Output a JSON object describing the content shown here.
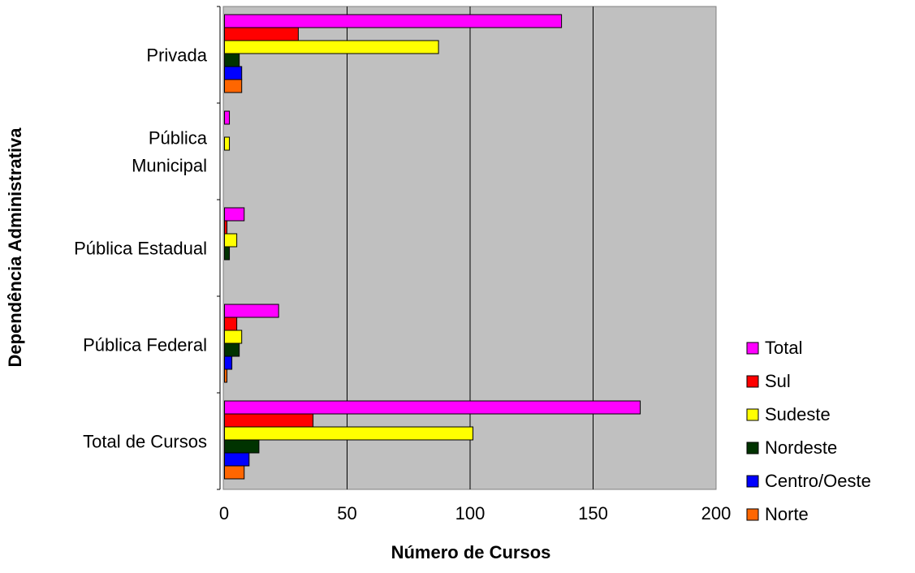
{
  "chart_data": {
    "type": "bar",
    "orientation": "horizontal",
    "categories": [
      "Privada",
      "Pública Municipal",
      "Pública Estadual",
      "Pública Federal",
      "Total de Cursos"
    ],
    "category_lines": [
      [
        "Privada"
      ],
      [
        "Pública",
        "Municipal"
      ],
      [
        "Pública Estadual"
      ],
      [
        "Pública Federal"
      ],
      [
        "Total de Cursos"
      ]
    ],
    "series": [
      {
        "name": "Total",
        "color": "#ff00ff",
        "values": [
          137,
          2,
          8,
          22,
          169
        ]
      },
      {
        "name": "Sul",
        "color": "#ff0000",
        "values": [
          30,
          0,
          1,
          5,
          36
        ]
      },
      {
        "name": "Sudeste",
        "color": "#ffff00",
        "values": [
          87,
          2,
          5,
          7,
          101
        ]
      },
      {
        "name": "Nordeste",
        "color": "#003300",
        "values": [
          6,
          0,
          2,
          6,
          14
        ]
      },
      {
        "name": "Centro/Oeste",
        "color": "#0000ff",
        "values": [
          7,
          0,
          0,
          3,
          10
        ]
      },
      {
        "name": "Norte",
        "color": "#ff6600",
        "values": [
          7,
          0,
          0,
          1,
          8
        ]
      }
    ],
    "xlabel": "Número de Cursos",
    "ylabel": "Dependência Administrativa",
    "xlim": [
      0,
      200
    ],
    "xticks": [
      "0",
      "50",
      "100",
      "150",
      "200"
    ],
    "grid": "vertical",
    "plot_background": "#c0c0c0",
    "legend_position": "right"
  }
}
